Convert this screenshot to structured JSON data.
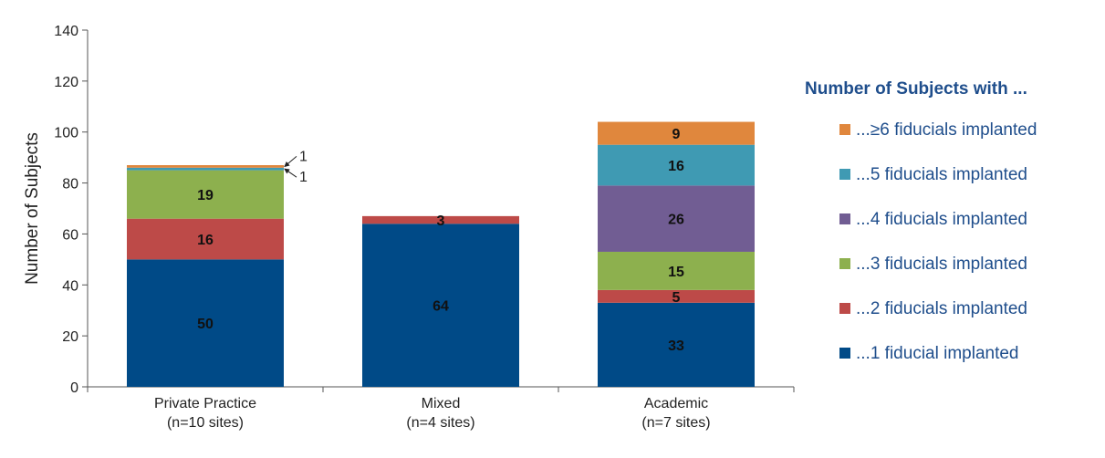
{
  "chart_data": {
    "type": "bar",
    "stacked": true,
    "ylabel": "Number of Subjects",
    "ylim": [
      0,
      140
    ],
    "yticks": [
      0,
      20,
      40,
      60,
      80,
      100,
      120,
      140
    ],
    "grid": false,
    "categories": [
      {
        "line1": "Private Practice",
        "line2": "(n=10 sites)"
      },
      {
        "line1": "Mixed",
        "line2": "(n=4 sites)"
      },
      {
        "line1": "Academic",
        "line2": "(n=7 sites)"
      }
    ],
    "legend": {
      "title": "Number of Subjects with ...",
      "placement": "right"
    },
    "series": [
      {
        "name": "...1 fiducial implanted",
        "color": "#004A87",
        "values": [
          50,
          64,
          33
        ]
      },
      {
        "name": "...2 fiducials implanted",
        "color": "#BD4A48",
        "values": [
          16,
          3,
          5
        ]
      },
      {
        "name": "...3 fiducials implanted",
        "color": "#8DB04E",
        "values": [
          19,
          0,
          15
        ]
      },
      {
        "name": "...4 fiducials implanted",
        "color": "#715D93",
        "values": [
          0,
          0,
          26
        ]
      },
      {
        "name": "...5 fiducials implanted",
        "color": "#3F9AB3",
        "values": [
          1,
          0,
          16
        ]
      },
      {
        "name": "...≥6 fiducials implanted",
        "color": "#E0873D",
        "values": [
          1,
          0,
          9
        ]
      }
    ],
    "annotations": [
      {
        "category": 0,
        "series": 5,
        "text": "1"
      },
      {
        "category": 0,
        "series": 4,
        "text": "1"
      }
    ]
  }
}
